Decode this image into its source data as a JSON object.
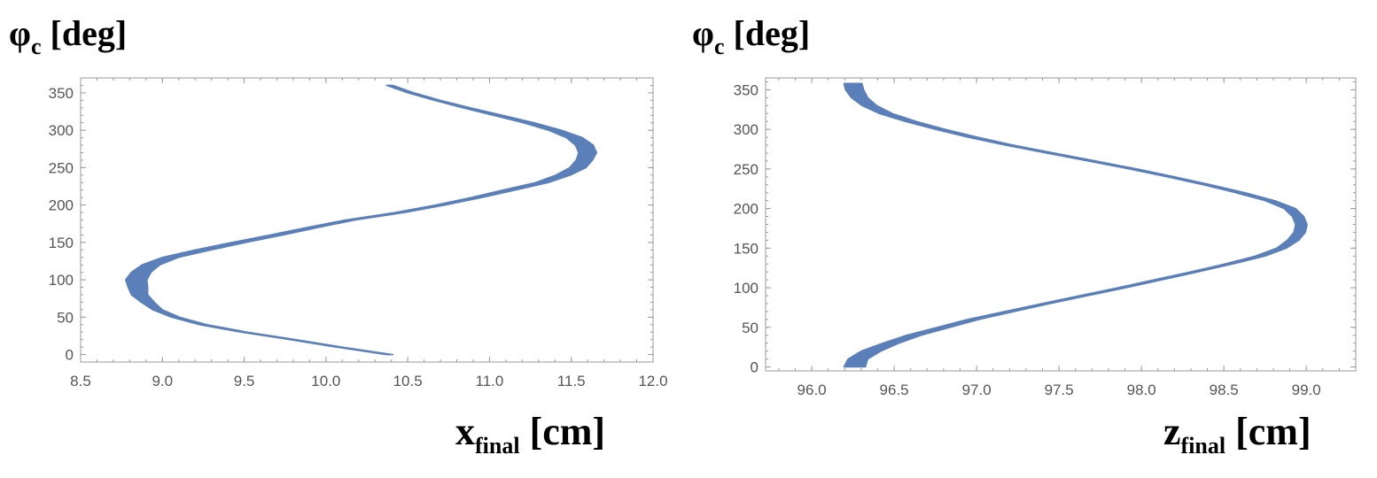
{
  "chart_data": [
    {
      "type": "scatter",
      "title": "",
      "ylabel": {
        "symbol": "φ",
        "sub": "c",
        "unit": "[deg]"
      },
      "xlabel": {
        "symbol": "x",
        "sub": "final",
        "unit": "[cm]"
      },
      "xlim": [
        8.5,
        12.0
      ],
      "ylim": [
        -10,
        370
      ],
      "xticks": [
        8.5,
        9.0,
        9.5,
        10.0,
        10.5,
        11.0,
        11.5,
        12.0
      ],
      "xtick_labels": [
        "8.5",
        "9.0",
        "9.5",
        "10.0",
        "10.5",
        "11.0",
        "11.5",
        "12.0"
      ],
      "yticks": [
        0,
        50,
        100,
        150,
        200,
        250,
        300,
        350
      ],
      "ytick_labels": [
        "0",
        "50",
        "100",
        "150",
        "200",
        "250",
        "300",
        "350"
      ],
      "series": [
        {
          "name": "band",
          "color": "#5b7fb9",
          "points": [
            {
              "y": 0,
              "x": 10.39,
              "w": 0.04
            },
            {
              "y": 10,
              "x": 10.08,
              "w": 0.04
            },
            {
              "y": 20,
              "x": 9.8,
              "w": 0.04
            },
            {
              "y": 30,
              "x": 9.5,
              "w": 0.04
            },
            {
              "y": 40,
              "x": 9.25,
              "w": 0.05
            },
            {
              "y": 50,
              "x": 9.08,
              "w": 0.05
            },
            {
              "y": 60,
              "x": 8.97,
              "w": 0.06
            },
            {
              "y": 70,
              "x": 8.91,
              "w": 0.08
            },
            {
              "y": 80,
              "x": 8.86,
              "w": 0.1
            },
            {
              "y": 90,
              "x": 8.85,
              "w": 0.12
            },
            {
              "y": 100,
              "x": 8.84,
              "w": 0.13
            },
            {
              "y": 110,
              "x": 8.87,
              "w": 0.12
            },
            {
              "y": 120,
              "x": 8.93,
              "w": 0.11
            },
            {
              "y": 130,
              "x": 9.05,
              "w": 0.1
            },
            {
              "y": 140,
              "x": 9.25,
              "w": 0.1
            },
            {
              "y": 150,
              "x": 9.47,
              "w": 0.09
            },
            {
              "y": 160,
              "x": 9.7,
              "w": 0.08
            },
            {
              "y": 170,
              "x": 9.92,
              "w": 0.07
            },
            {
              "y": 180,
              "x": 10.15,
              "w": 0.06
            },
            {
              "y": 190,
              "x": 10.45,
              "w": 0.06
            },
            {
              "y": 200,
              "x": 10.7,
              "w": 0.06
            },
            {
              "y": 210,
              "x": 10.92,
              "w": 0.07
            },
            {
              "y": 220,
              "x": 11.12,
              "w": 0.08
            },
            {
              "y": 230,
              "x": 11.32,
              "w": 0.08
            },
            {
              "y": 240,
              "x": 11.45,
              "w": 0.09
            },
            {
              "y": 250,
              "x": 11.54,
              "w": 0.1
            },
            {
              "y": 260,
              "x": 11.58,
              "w": 0.1
            },
            {
              "y": 270,
              "x": 11.6,
              "w": 0.11
            },
            {
              "y": 280,
              "x": 11.58,
              "w": 0.11
            },
            {
              "y": 290,
              "x": 11.52,
              "w": 0.1
            },
            {
              "y": 300,
              "x": 11.4,
              "w": 0.08
            },
            {
              "y": 310,
              "x": 11.24,
              "w": 0.07
            },
            {
              "y": 320,
              "x": 11.05,
              "w": 0.06
            },
            {
              "y": 330,
              "x": 10.86,
              "w": 0.05
            },
            {
              "y": 340,
              "x": 10.68,
              "w": 0.04
            },
            {
              "y": 350,
              "x": 10.52,
              "w": 0.04
            },
            {
              "y": 360,
              "x": 10.39,
              "w": 0.04
            }
          ]
        }
      ]
    },
    {
      "type": "scatter",
      "title": "",
      "ylabel": {
        "symbol": "φ",
        "sub": "c",
        "unit": "[deg]"
      },
      "xlabel": {
        "symbol": "z",
        "sub": "final",
        "unit": "[cm]"
      },
      "xlim": [
        95.72,
        99.3
      ],
      "ylim": [
        -5,
        365
      ],
      "xticks": [
        96.0,
        96.5,
        97.0,
        97.5,
        98.0,
        98.5,
        99.0
      ],
      "xtick_labels": [
        "96.0",
        "96.5",
        "97.0",
        "97.5",
        "98.0",
        "98.5",
        "99.0"
      ],
      "yticks": [
        0,
        50,
        100,
        150,
        200,
        250,
        300,
        350
      ],
      "ytick_labels": [
        "0",
        "50",
        "100",
        "150",
        "200",
        "250",
        "300",
        "350"
      ],
      "series": [
        {
          "name": "band",
          "color": "#5b7fb9",
          "points": [
            {
              "y": 0,
              "x": 96.26,
              "w": 0.13
            },
            {
              "y": 10,
              "x": 96.28,
              "w": 0.12
            },
            {
              "y": 20,
              "x": 96.36,
              "w": 0.12
            },
            {
              "y": 30,
              "x": 96.48,
              "w": 0.1
            },
            {
              "y": 40,
              "x": 96.62,
              "w": 0.09
            },
            {
              "y": 50,
              "x": 96.8,
              "w": 0.08
            },
            {
              "y": 60,
              "x": 96.98,
              "w": 0.07
            },
            {
              "y": 70,
              "x": 97.2,
              "w": 0.06
            },
            {
              "y": 80,
              "x": 97.42,
              "w": 0.05
            },
            {
              "y": 90,
              "x": 97.65,
              "w": 0.05
            },
            {
              "y": 100,
              "x": 97.88,
              "w": 0.05
            },
            {
              "y": 110,
              "x": 98.1,
              "w": 0.05
            },
            {
              "y": 120,
              "x": 98.32,
              "w": 0.05
            },
            {
              "y": 130,
              "x": 98.53,
              "w": 0.05
            },
            {
              "y": 140,
              "x": 98.72,
              "w": 0.06
            },
            {
              "y": 150,
              "x": 98.85,
              "w": 0.06
            },
            {
              "y": 160,
              "x": 98.92,
              "w": 0.07
            },
            {
              "y": 170,
              "x": 98.96,
              "w": 0.07
            },
            {
              "y": 180,
              "x": 98.97,
              "w": 0.07
            },
            {
              "y": 190,
              "x": 98.95,
              "w": 0.07
            },
            {
              "y": 200,
              "x": 98.9,
              "w": 0.07
            },
            {
              "y": 210,
              "x": 98.78,
              "w": 0.06
            },
            {
              "y": 220,
              "x": 98.6,
              "w": 0.06
            },
            {
              "y": 230,
              "x": 98.4,
              "w": 0.05
            },
            {
              "y": 240,
              "x": 98.18,
              "w": 0.05
            },
            {
              "y": 250,
              "x": 97.95,
              "w": 0.05
            },
            {
              "y": 260,
              "x": 97.7,
              "w": 0.05
            },
            {
              "y": 270,
              "x": 97.45,
              "w": 0.05
            },
            {
              "y": 280,
              "x": 97.2,
              "w": 0.05
            },
            {
              "y": 290,
              "x": 96.98,
              "w": 0.06
            },
            {
              "y": 300,
              "x": 96.78,
              "w": 0.06
            },
            {
              "y": 310,
              "x": 96.6,
              "w": 0.07
            },
            {
              "y": 320,
              "x": 96.45,
              "w": 0.08
            },
            {
              "y": 330,
              "x": 96.35,
              "w": 0.09
            },
            {
              "y": 340,
              "x": 96.29,
              "w": 0.1
            },
            {
              "y": 350,
              "x": 96.26,
              "w": 0.11
            },
            {
              "y": 358,
              "x": 96.25,
              "w": 0.11
            }
          ]
        }
      ]
    }
  ]
}
